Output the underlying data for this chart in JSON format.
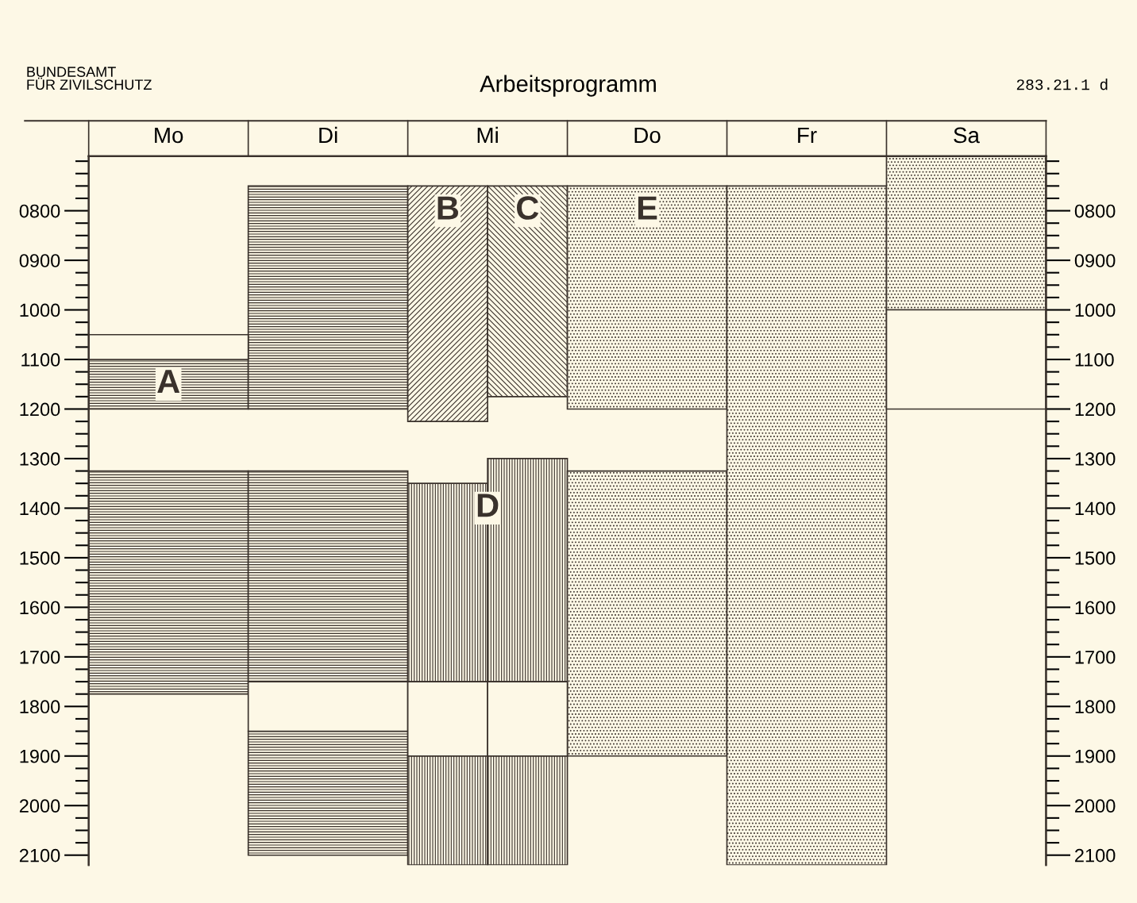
{
  "chart_data": {
    "type": "bar",
    "title": "Arbeitsprogramm",
    "annotations": [
      "BUNDESAMT\nFÜR ZIVILSCHUTZ",
      "283.21.1 d"
    ],
    "categories": [
      "Mo",
      "Di",
      "Mi",
      null,
      "Do",
      "Fr",
      "Sa"
    ],
    "ylim": [
      2120,
      690
    ],
    "yticks": [
      {
        "value": 800,
        "label": "0800"
      },
      {
        "value": 900,
        "label": "0900"
      },
      1000,
      1100,
      1200,
      1300,
      1400,
      1500,
      1600,
      1700,
      1800,
      1900,
      2000,
      2100
    ],
    "y2lim": [
      2120,
      690
    ],
    "y2ticks": [
      {
        "value": 800,
        "label": "0800"
      },
      {
        "value": 900,
        "label": "0900"
      },
      1000,
      1100,
      1200,
      1300,
      1400,
      1500,
      1600,
      1700,
      1800,
      1900,
      2000,
      2100
    ],
    "grid": false,
    "legend": false,
    "series": [
      {
        "name": "A",
        "color": "#3a322c",
        "base": [
          1100,
          null,
          null,
          null,
          null,
          null,
          null
        ],
        "values": [
          100,
          null,
          null,
          null,
          null,
          null,
          null
        ]
      },
      {
        "color": "#3a322c",
        "base": [
          null,
          750,
          null,
          null,
          null,
          null,
          null
        ],
        "values": [
          null,
          450,
          null,
          null,
          null,
          null,
          null
        ]
      },
      {
        "color": "#3a322c",
        "base": [
          1325,
          1325,
          null,
          null,
          null,
          null,
          null
        ],
        "values": [
          450,
          425,
          null,
          null,
          null,
          null,
          null
        ]
      },
      {
        "color": "#3a322c",
        "base": [
          null,
          1850,
          null,
          null,
          null,
          null,
          null
        ],
        "values": [
          null,
          250,
          null,
          null,
          null,
          null,
          null
        ]
      },
      {
        "name": "B",
        "color": "#3a322c",
        "base": [
          null,
          null,
          750,
          null,
          null,
          null,
          null
        ],
        "values": [
          null,
          null,
          475,
          null,
          null,
          null,
          null
        ]
      },
      {
        "name": "C",
        "color": "#3a322c",
        "base": [
          null,
          null,
          null,
          750,
          null,
          null,
          null
        ],
        "values": [
          null,
          null,
          null,
          425,
          null,
          null,
          null
        ]
      },
      {
        "name": "D",
        "color": "#3a322c",
        "base": [
          null,
          null,
          1350,
          1300,
          null,
          null,
          null
        ],
        "values": [
          null,
          null,
          400,
          450,
          null,
          null,
          null
        ]
      },
      {
        "color": "#3a322c",
        "base": [
          null,
          null,
          1900,
          1900,
          null,
          null,
          null
        ],
        "values": [
          null,
          null,
          220,
          220,
          null,
          null,
          null
        ]
      },
      {
        "name": "E",
        "color": "#3a322c",
        "base": [
          null,
          null,
          null,
          null,
          750,
          null,
          null
        ],
        "values": [
          null,
          null,
          null,
          null,
          450,
          null,
          null
        ]
      },
      {
        "color": "#3a322c",
        "base": [
          null,
          null,
          null,
          null,
          1325,
          750,
          690
        ],
        "values": [
          null,
          null,
          null,
          null,
          575,
          1370,
          310
        ]
      },
      {
        "color": "#3a322c",
        "base": [
          1050,
          1750,
          1750,
          1750,
          null,
          null,
          1000
        ],
        "values": [
          50,
          100,
          150,
          150,
          null,
          null,
          200
        ]
      }
    ]
  }
}
